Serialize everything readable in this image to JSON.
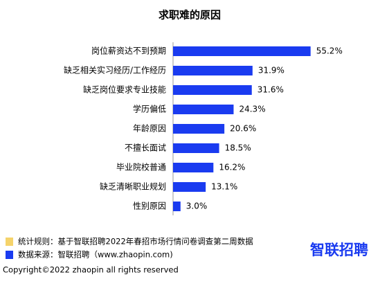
{
  "chart_data": {
    "type": "bar",
    "orientation": "horizontal",
    "title": "求职难的原因",
    "categories": [
      "岗位薪资达不到预期",
      "缺乏相关实习经历/工作经历",
      "缺乏岗位要求专业技能",
      "学历偏低",
      "年龄原因",
      "不擅长面试",
      "毕业院校普通",
      "缺乏清晰职业规划",
      "性别原因"
    ],
    "values": [
      55.2,
      31.9,
      31.6,
      24.3,
      20.6,
      18.5,
      16.2,
      13.1,
      3.0
    ],
    "value_labels": [
      "55.2%",
      "31.9%",
      "31.6%",
      "24.3%",
      "20.6%",
      "18.5%",
      "16.2%",
      "13.1%",
      "3.0%"
    ],
    "color": "#1a3bf0",
    "notes": [
      {
        "text": "统计规则：基于智联招聘2022年春招市场行情问卷调查第二周数据",
        "color": "#f5d36b"
      },
      {
        "text": "数据来源：智联招聘（www.zhaopin.com)",
        "color": "#1a3bf0"
      }
    ],
    "copyright": "Copyright©2022 zhaopin all rights reserved",
    "logo": "智联招聘"
  }
}
